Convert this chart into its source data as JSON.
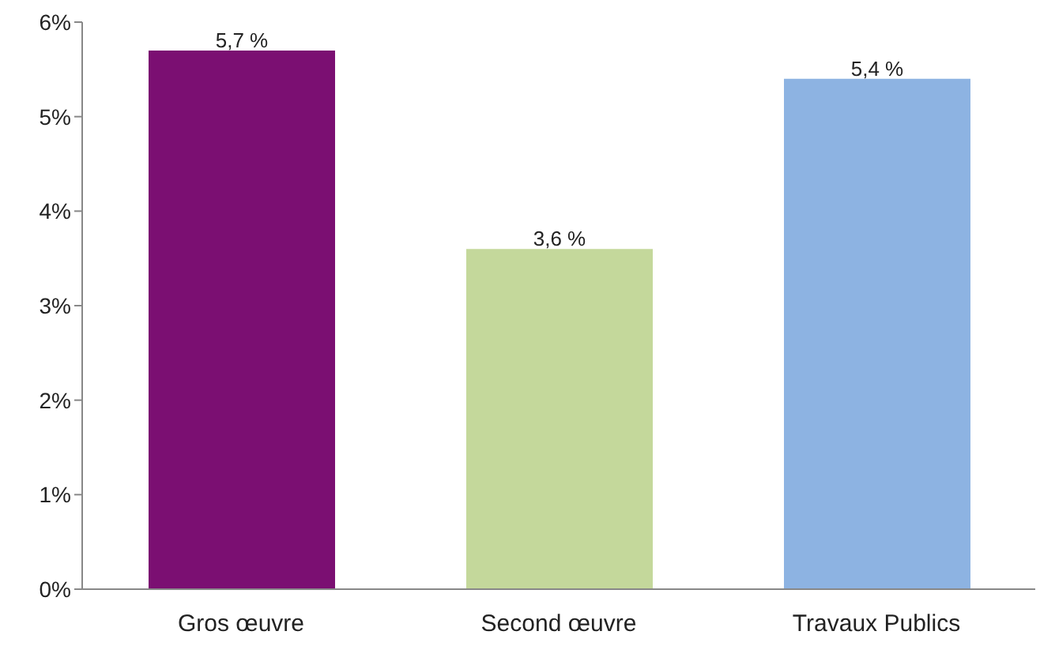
{
  "chart_data": {
    "type": "bar",
    "categories": [
      "Gros œuvre",
      "Second œuvre",
      "Travaux Publics"
    ],
    "values": [
      5.7,
      3.6,
      5.4
    ],
    "colors": [
      "#7b0f72",
      "#c4d89b",
      "#8db3e2"
    ],
    "value_labels": [
      "5,7 %",
      "3,6 %",
      "5,4 %"
    ],
    "ylim": [
      0,
      6
    ],
    "yticks": [
      {
        "value": 0,
        "label": "0%"
      },
      {
        "value": 1,
        "label": "1%"
      },
      {
        "value": 2,
        "label": "2%"
      },
      {
        "value": 3,
        "label": "3%"
      },
      {
        "value": 4,
        "label": "4%"
      },
      {
        "value": 5,
        "label": "5%"
      },
      {
        "value": 6,
        "label": "6%"
      }
    ],
    "grid": false,
    "legend": false
  }
}
